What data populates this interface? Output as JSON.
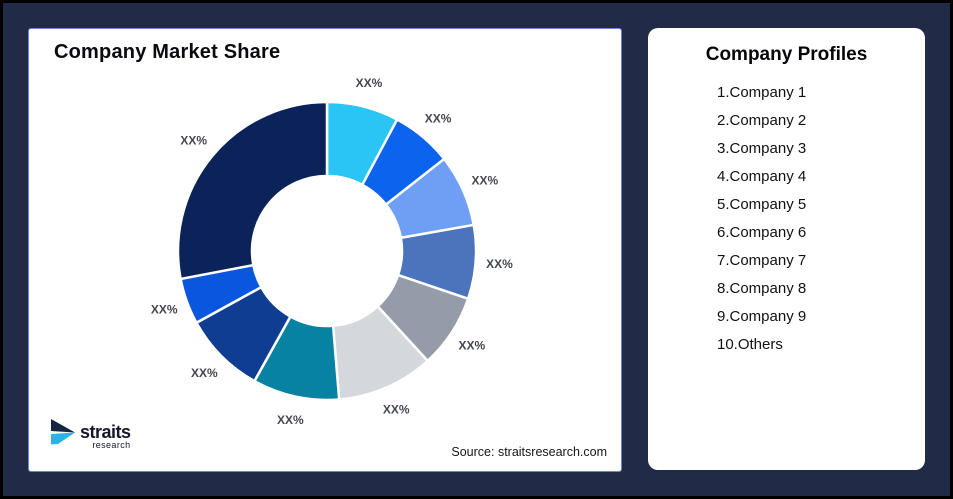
{
  "frame": {
    "background_color": "#212B48",
    "outer_border_color": "#000000"
  },
  "market_share_card": {
    "title": "Company Market Share",
    "source_note": "Source: straitsresearch.com",
    "border_color": "#6C86DF"
  },
  "logo": {
    "name": "straits",
    "subname": "research",
    "arrow_navy": "#152441",
    "arrow_cyan": "#2BB3E8"
  },
  "profiles_card": {
    "title": "Company Profiles",
    "items": [
      "1.Company 1",
      "2.Company 2",
      "3.Company 3",
      "4.Company 4",
      "5.Company 5",
      "6.Company 6",
      "7.Company 7",
      "8.Company 8",
      "9.Company 9",
      "10.Others"
    ]
  },
  "chart_data": {
    "type": "pie",
    "subtype": "donut",
    "title": "Company Market Share",
    "source": "Source: straitsresearch.com",
    "legend_position": "none",
    "start_angle_deg": 0,
    "direction": "clockwise",
    "note": "All slice data labels are placeholder text XX%; values below are share estimates measured from arc angles",
    "label_color": "#43474F",
    "segments": [
      {
        "name": "Company 1",
        "label": "XX%",
        "value": 7.8,
        "color": "#2BC5F4"
      },
      {
        "name": "Company 2",
        "label": "XX%",
        "value": 6.6,
        "color": "#0B63EE"
      },
      {
        "name": "Company 3",
        "label": "XX%",
        "value": 7.8,
        "color": "#6F9EF5"
      },
      {
        "name": "Company 4",
        "label": "XX%",
        "value": 8.0,
        "color": "#4C74BD"
      },
      {
        "name": "Company 5",
        "label": "XX%",
        "value": 8.0,
        "color": "#949CA9"
      },
      {
        "name": "Company 6",
        "label": "XX%",
        "value": 10.5,
        "color": "#D4D7DC"
      },
      {
        "name": "Company 7",
        "label": "XX%",
        "value": 9.4,
        "color": "#0782A2"
      },
      {
        "name": "Company 8",
        "label": "XX%",
        "value": 8.9,
        "color": "#0E3D92"
      },
      {
        "name": "Company 9",
        "label": "XX%",
        "value": 5.0,
        "color": "#0A57DF"
      },
      {
        "name": "Others",
        "label": "XX%",
        "value": 28.0,
        "color": "#0B2359"
      }
    ]
  }
}
